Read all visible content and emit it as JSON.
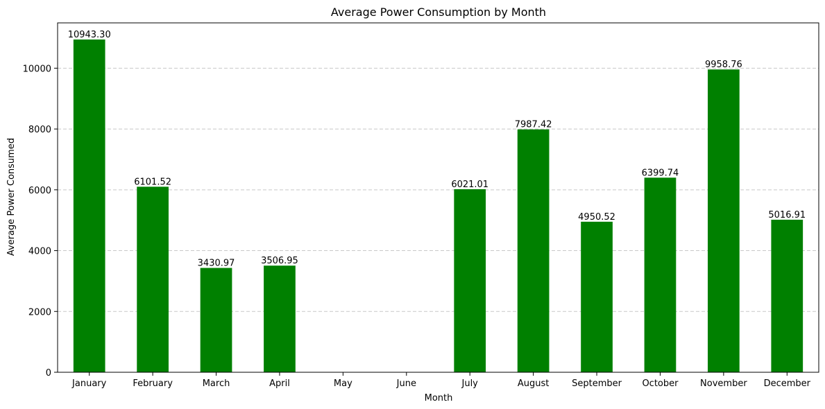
{
  "chart_data": {
    "type": "bar",
    "title": "Average Power Consumption by Month",
    "xlabel": "Month",
    "ylabel": "Average Power Consumed",
    "categories": [
      "January",
      "February",
      "March",
      "April",
      "May",
      "June",
      "July",
      "August",
      "September",
      "October",
      "November",
      "December"
    ],
    "values": [
      10943.3,
      6101.52,
      3430.97,
      3506.95,
      null,
      null,
      6021.01,
      7987.42,
      4950.52,
      6399.74,
      9958.76,
      5016.91
    ],
    "data_labels": [
      "10943.30",
      "6101.52",
      "3430.97",
      "3506.95",
      "",
      "",
      "6021.01",
      "7987.42",
      "4950.52",
      "6399.74",
      "9958.76",
      "5016.91"
    ],
    "yticks": [
      0,
      2000,
      4000,
      6000,
      8000,
      10000
    ],
    "ylim": [
      0,
      11490
    ],
    "grid": "y-dashed",
    "bar_color": "#008000",
    "grid_color": "#c8c8c8"
  }
}
